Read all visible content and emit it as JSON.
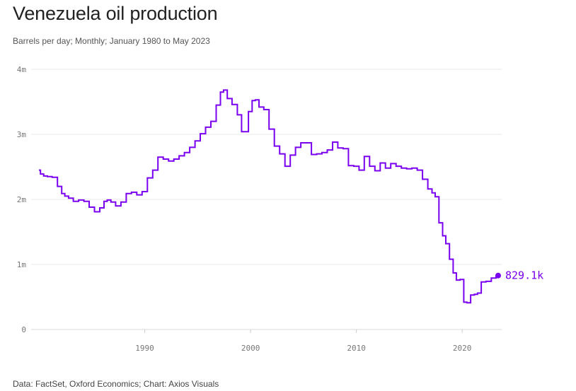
{
  "chart_data": {
    "type": "line",
    "title": "Venezuela oil production",
    "subtitle": "Barrels per day; Monthly; January 1980 to May 2023",
    "source": "Data: FactSet, Oxford Economics; Chart: Axios Visuals",
    "xlabel": "",
    "ylabel": "",
    "xlim": [
      1980.0,
      2023.4
    ],
    "ylim": [
      0,
      4000000
    ],
    "y_ticks": [
      {
        "value": 0,
        "label": "0"
      },
      {
        "value": 1000000,
        "label": "1m"
      },
      {
        "value": 2000000,
        "label": "2m"
      },
      {
        "value": 3000000,
        "label": "3m"
      },
      {
        "value": 4000000,
        "label": "4m"
      }
    ],
    "x_ticks": [
      {
        "value": 1990,
        "label": "1990"
      },
      {
        "value": 2000,
        "label": "2000"
      },
      {
        "value": 2010,
        "label": "2010"
      },
      {
        "value": 2020,
        "label": "2020"
      }
    ],
    "grid": true,
    "line_color": "#7a00f0",
    "end_label": "829.1k",
    "series": [
      {
        "name": "Venezuela oil production",
        "x": [
          1980.0,
          1980.3,
          1980.6,
          1981.0,
          1981.5,
          1982.0,
          1982.3,
          1982.6,
          1983.0,
          1983.5,
          1984.0,
          1984.5,
          1985.0,
          1985.5,
          1986.0,
          1986.3,
          1986.6,
          1987.0,
          1987.5,
          1988.0,
          1988.5,
          1989.0,
          1989.5,
          1990.0,
          1990.5,
          1991.0,
          1991.5,
          1992.0,
          1992.5,
          1993.0,
          1993.5,
          1994.0,
          1994.5,
          1995.0,
          1995.5,
          1996.0,
          1996.5,
          1997.0,
          1997.3,
          1997.6,
          1998.0,
          1998.5,
          1999.0,
          1999.3,
          1999.6,
          2000.0,
          2000.3,
          2000.6,
          2001.0,
          2001.5,
          2002.0,
          2002.5,
          2003.0,
          2003.5,
          2004.0,
          2004.5,
          2005.0,
          2005.5,
          2006.0,
          2006.5,
          2007.0,
          2007.5,
          2008.0,
          2008.5,
          2009.0,
          2009.5,
          2010.0,
          2010.5,
          2011.0,
          2011.5,
          2012.0,
          2012.5,
          2013.0,
          2013.5,
          2014.0,
          2014.5,
          2015.0,
          2015.5,
          2016.0,
          2016.5,
          2017.0,
          2017.3,
          2017.6,
          2018.0,
          2018.3,
          2018.6,
          2019.0,
          2019.3,
          2019.6,
          2020.0,
          2020.3,
          2020.6,
          2021.0,
          2021.3,
          2021.6,
          2022.0,
          2022.5,
          2023.0,
          2023.4
        ],
        "y": [
          2450000,
          2390000,
          2360000,
          2350000,
          2340000,
          2200000,
          2090000,
          2050000,
          2020000,
          1970000,
          1990000,
          1970000,
          1880000,
          1810000,
          1870000,
          1970000,
          1990000,
          1960000,
          1900000,
          1960000,
          2090000,
          2110000,
          2070000,
          2120000,
          2330000,
          2450000,
          2650000,
          2620000,
          2590000,
          2620000,
          2670000,
          2720000,
          2800000,
          2900000,
          3010000,
          3110000,
          3200000,
          3450000,
          3650000,
          3680000,
          3550000,
          3460000,
          3300000,
          3040000,
          3040000,
          3350000,
          3520000,
          3530000,
          3420000,
          3380000,
          3080000,
          2820000,
          2700000,
          2510000,
          2680000,
          2800000,
          2870000,
          2870000,
          2690000,
          2700000,
          2720000,
          2760000,
          2880000,
          2790000,
          2780000,
          2520000,
          2510000,
          2450000,
          2660000,
          2510000,
          2440000,
          2560000,
          2480000,
          2550000,
          2510000,
          2480000,
          2470000,
          2480000,
          2450000,
          2310000,
          2160000,
          2100000,
          2040000,
          1640000,
          1440000,
          1320000,
          1080000,
          870000,
          760000,
          770000,
          420000,
          410000,
          530000,
          540000,
          560000,
          730000,
          740000,
          790000,
          829100
        ]
      }
    ]
  }
}
